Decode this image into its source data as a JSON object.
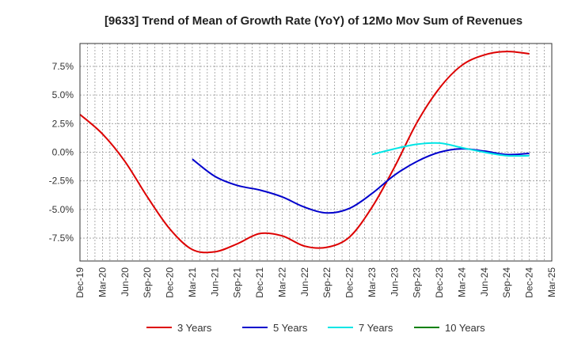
{
  "chart_data": {
    "type": "line",
    "title": "[9633]  Trend of Mean of Growth Rate (YoY) of 12Mo Mov Sum of Revenues",
    "xlabel": "",
    "ylabel": "",
    "x_tick_labels": [
      "Dec-19",
      "Mar-20",
      "Jun-20",
      "Sep-20",
      "Dec-20",
      "Mar-21",
      "Jun-21",
      "Sep-21",
      "Dec-21",
      "Mar-22",
      "Jun-22",
      "Sep-22",
      "Dec-22",
      "Mar-23",
      "Jun-23",
      "Sep-23",
      "Dec-23",
      "Mar-24",
      "Jun-24",
      "Sep-24",
      "Dec-24",
      "Mar-25"
    ],
    "y_tick_labels": [
      "7.5%",
      "5.0%",
      "2.5%",
      "0.0%",
      "-2.5%",
      "-5.0%",
      "-7.5%"
    ],
    "y_tick_values": [
      7.5,
      5.0,
      2.5,
      0.0,
      -2.5,
      -5.0,
      -7.5
    ],
    "ylim": [
      -9.5,
      9.5
    ],
    "x_range_quarters": [
      0,
      21
    ],
    "grid": true,
    "legend_position": "bottom",
    "series": [
      {
        "name": "3 Years",
        "color": "#dd0000",
        "x": [
          0,
          1,
          2,
          3,
          4,
          5,
          6,
          7,
          8,
          9,
          10,
          11,
          12,
          13,
          14,
          15,
          16,
          17,
          18,
          19,
          20
        ],
        "values": [
          3.3,
          1.6,
          -0.8,
          -3.9,
          -6.7,
          -8.5,
          -8.7,
          -8.0,
          -7.1,
          -7.3,
          -8.2,
          -8.3,
          -7.4,
          -4.8,
          -1.3,
          2.6,
          5.6,
          7.6,
          8.5,
          8.8,
          8.6
        ]
      },
      {
        "name": "5 Years",
        "color": "#0000cc",
        "x": [
          5,
          6,
          7,
          8,
          9,
          10,
          11,
          12,
          13,
          14,
          15,
          16,
          17,
          18,
          19,
          20
        ],
        "values": [
          -0.6,
          -2.1,
          -2.9,
          -3.3,
          -3.9,
          -4.8,
          -5.3,
          -4.9,
          -3.6,
          -2.0,
          -0.8,
          0.0,
          0.3,
          0.1,
          -0.2,
          -0.1
        ]
      },
      {
        "name": "7 Years",
        "color": "#00e5e5",
        "x": [
          13,
          14,
          15,
          16,
          17,
          18,
          19,
          20
        ],
        "values": [
          -0.2,
          0.3,
          0.7,
          0.8,
          0.4,
          0.0,
          -0.3,
          -0.3
        ]
      },
      {
        "name": "10 Years",
        "color": "#008000",
        "x": [],
        "values": []
      }
    ]
  }
}
